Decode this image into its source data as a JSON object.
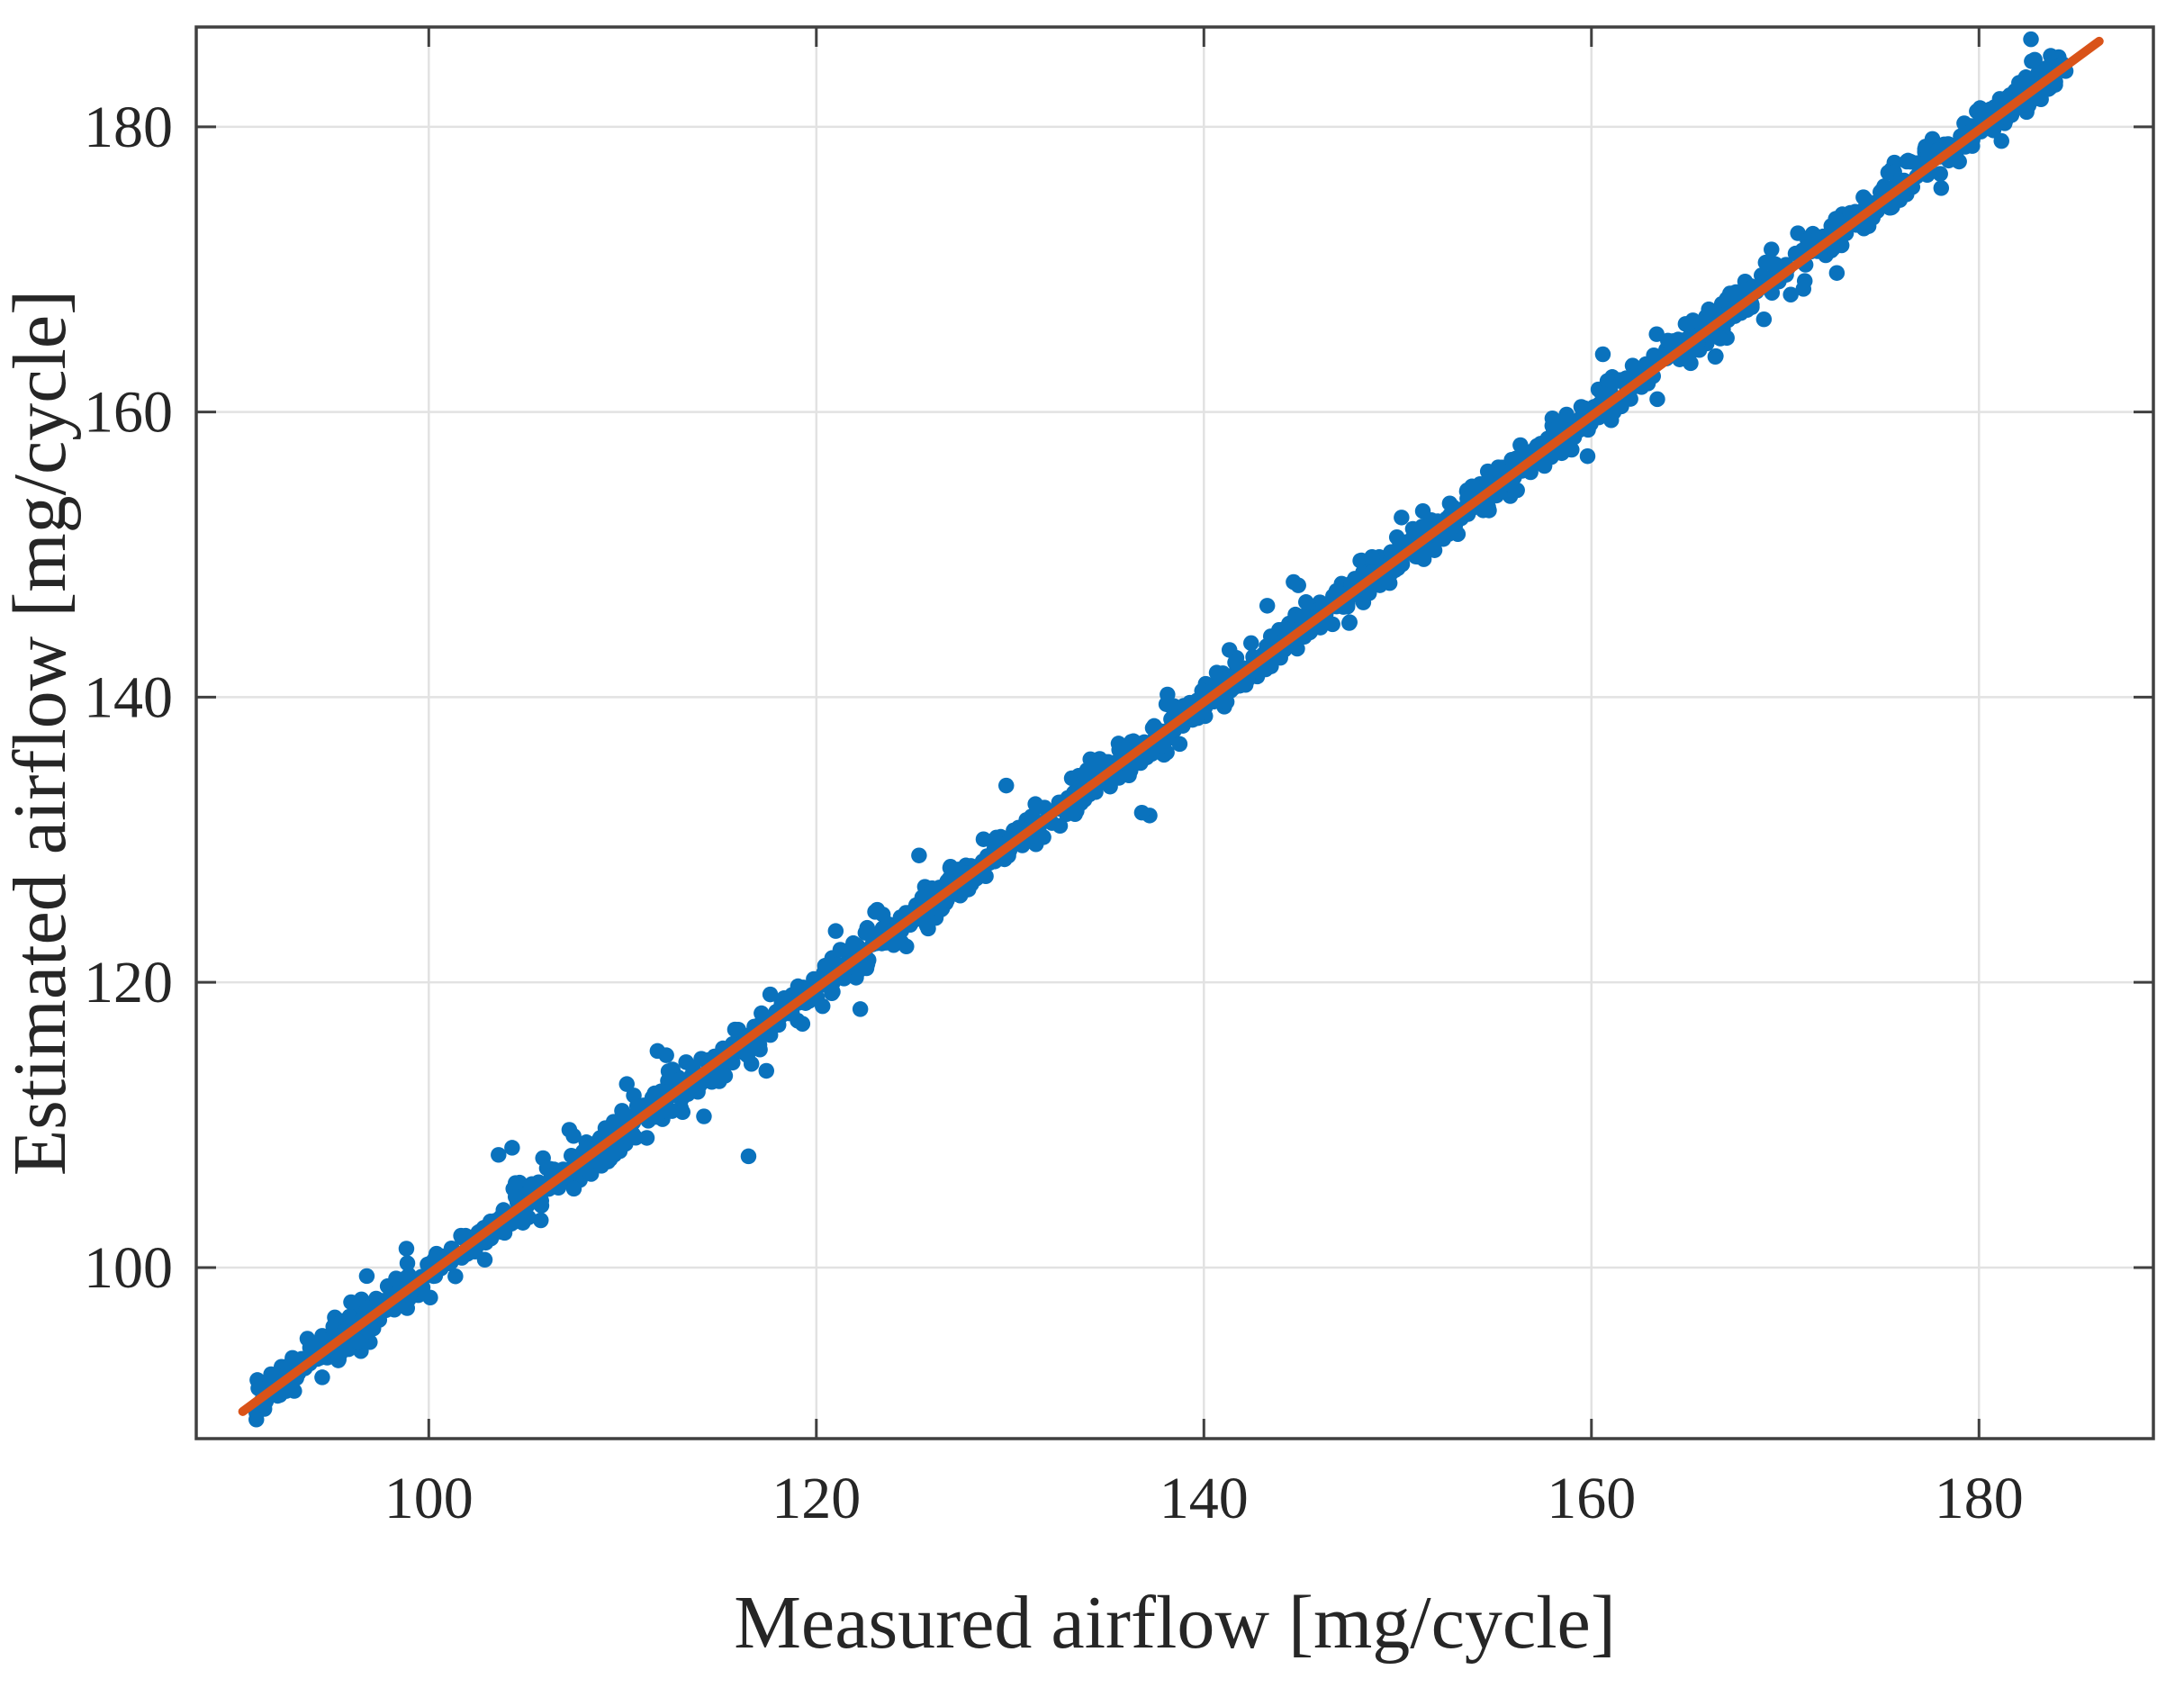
{
  "chart_data": {
    "type": "scatter",
    "title": "",
    "xlabel": "Measured airflow [mg/cycle]",
    "ylabel": "Estimated airflow [mg/cycle]",
    "xlim": [
      88,
      189
    ],
    "ylim": [
      88,
      187
    ],
    "xticks": [
      100,
      120,
      140,
      160,
      180
    ],
    "yticks": [
      100,
      120,
      140,
      160,
      180
    ],
    "grid": true,
    "grid_color": "#e2e2e2",
    "axis_color": "#404040",
    "background": "#ffffff",
    "legend": "none",
    "series": [
      {
        "name": "estimated-vs-measured-points",
        "type": "scatter",
        "color": "#0a72bd",
        "marker_size": 4.6,
        "generator": {
          "n": 1600,
          "seed": 42,
          "x_min": 91.0,
          "x_max": 184.5,
          "slope": 1.004,
          "intercept": -0.8,
          "noise_sd": 0.7,
          "wide_noise_sd": 1.7,
          "wide_fraction": 0.06
        },
        "outliers": [
          [
            116.5,
            107.8
          ],
          [
            114.2,
            110.6
          ],
          [
            113.1,
            110.9
          ],
          [
            104.3,
            108.4
          ],
          [
            103.6,
            107.9
          ],
          [
            137.2,
            131.7
          ],
          [
            136.8,
            131.9
          ],
          [
            129.8,
            133.8
          ],
          [
            125.3,
            128.9
          ],
          [
            96.8,
            99.4
          ],
          [
            159.8,
            156.9
          ],
          [
            163.4,
            160.9
          ],
          [
            168.9,
            166.5
          ],
          [
            183.9,
            183.2
          ],
          [
            92.2,
            91.0
          ],
          [
            121.0,
            123.6
          ],
          [
            147.5,
            145.2
          ],
          [
            150.2,
            152.6
          ]
        ]
      },
      {
        "name": "linear-fit-line",
        "type": "line",
        "color": "#d95319",
        "width": 10,
        "x": [
          90.4,
          186.2
        ],
        "y": [
          89.9,
          186.0
        ]
      }
    ]
  }
}
